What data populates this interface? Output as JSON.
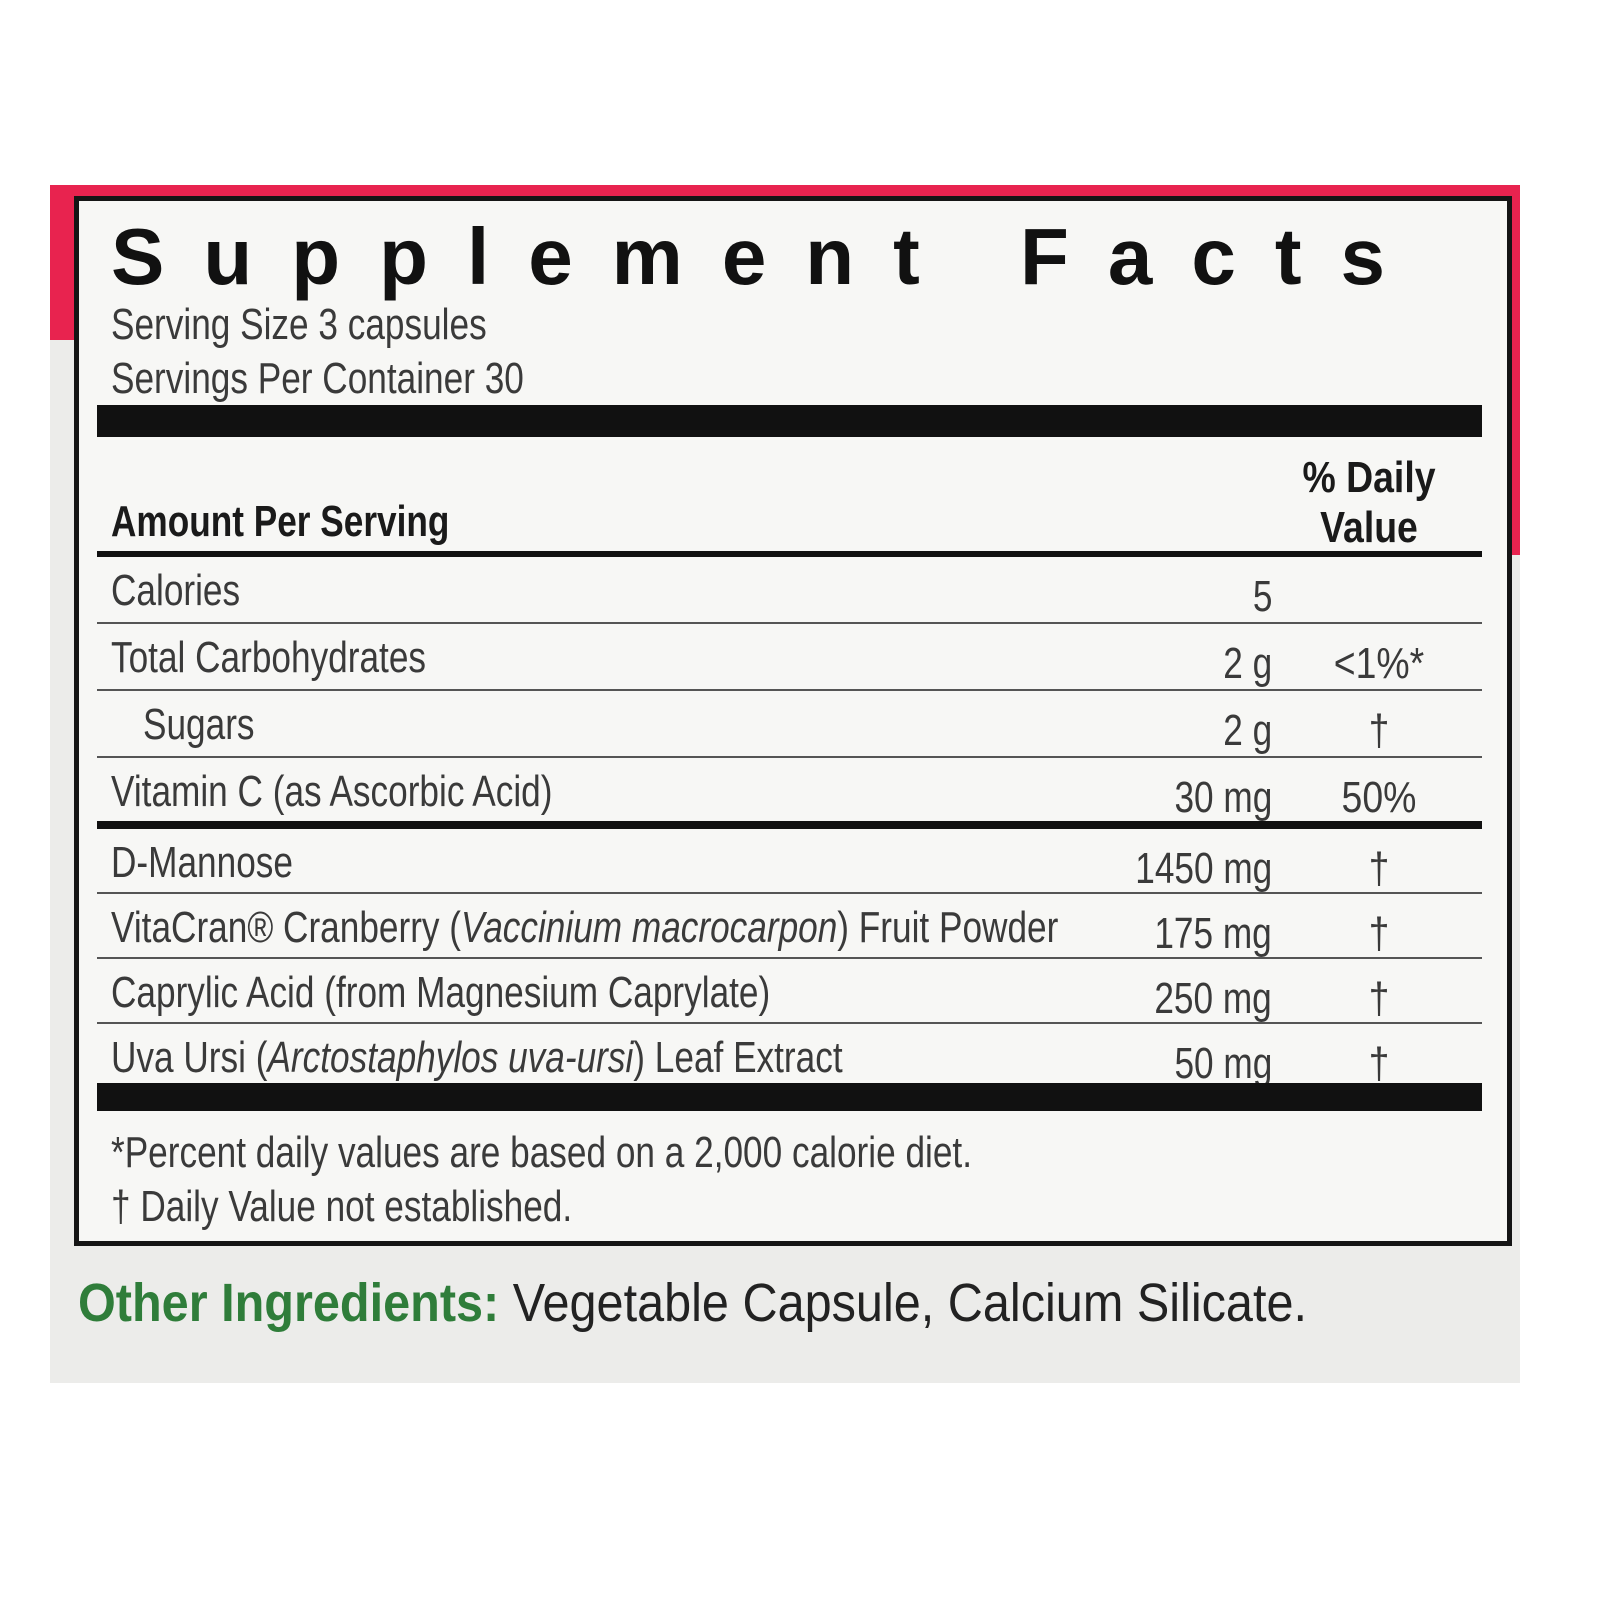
{
  "panel": {
    "title": "Supplement Facts",
    "serving_size": "Serving Size 3 capsules",
    "servings_per_container": "Servings Per Container 30",
    "table": {
      "header_amount": "Amount Per Serving",
      "header_dv": "% Daily Value",
      "sections": [
        [
          {
            "name": "Calories",
            "amount": "5",
            "dv": ""
          },
          {
            "name": "Total Carbohydrates",
            "amount": "2 g",
            "dv": "<1%*"
          },
          {
            "name": "Sugars",
            "amount": "2 g",
            "dv": "†",
            "indent": true
          },
          {
            "name": "Vitamin C (as Ascorbic Acid)",
            "amount": "30 mg",
            "dv": "50%"
          }
        ],
        [
          {
            "name": "D-Mannose",
            "amount": "1450 mg",
            "dv": "†"
          },
          {
            "name": {
              "before": "VitaCran® Cranberry (",
              "italic": "Vaccinium macrocarpon",
              "after": ") Fruit Powder"
            },
            "amount": "175 mg",
            "dv": "†"
          },
          {
            "name": "Caprylic Acid (from Magnesium Caprylate)",
            "amount": "250 mg",
            "dv": "†"
          },
          {
            "name": {
              "before": "Uva Ursi (",
              "italic": "Arctostaphylos uva-ursi",
              "after": ") Leaf Extract"
            },
            "amount": "50 mg",
            "dv": "†"
          }
        ]
      ]
    },
    "footnotes": [
      "*Percent daily values are based on a 2,000 calorie diet.",
      "† Daily Value not established."
    ]
  },
  "other_ingredients": {
    "label": "Other Ingredients:",
    "text": "Vegetable Capsule, Calcium Silicate."
  }
}
